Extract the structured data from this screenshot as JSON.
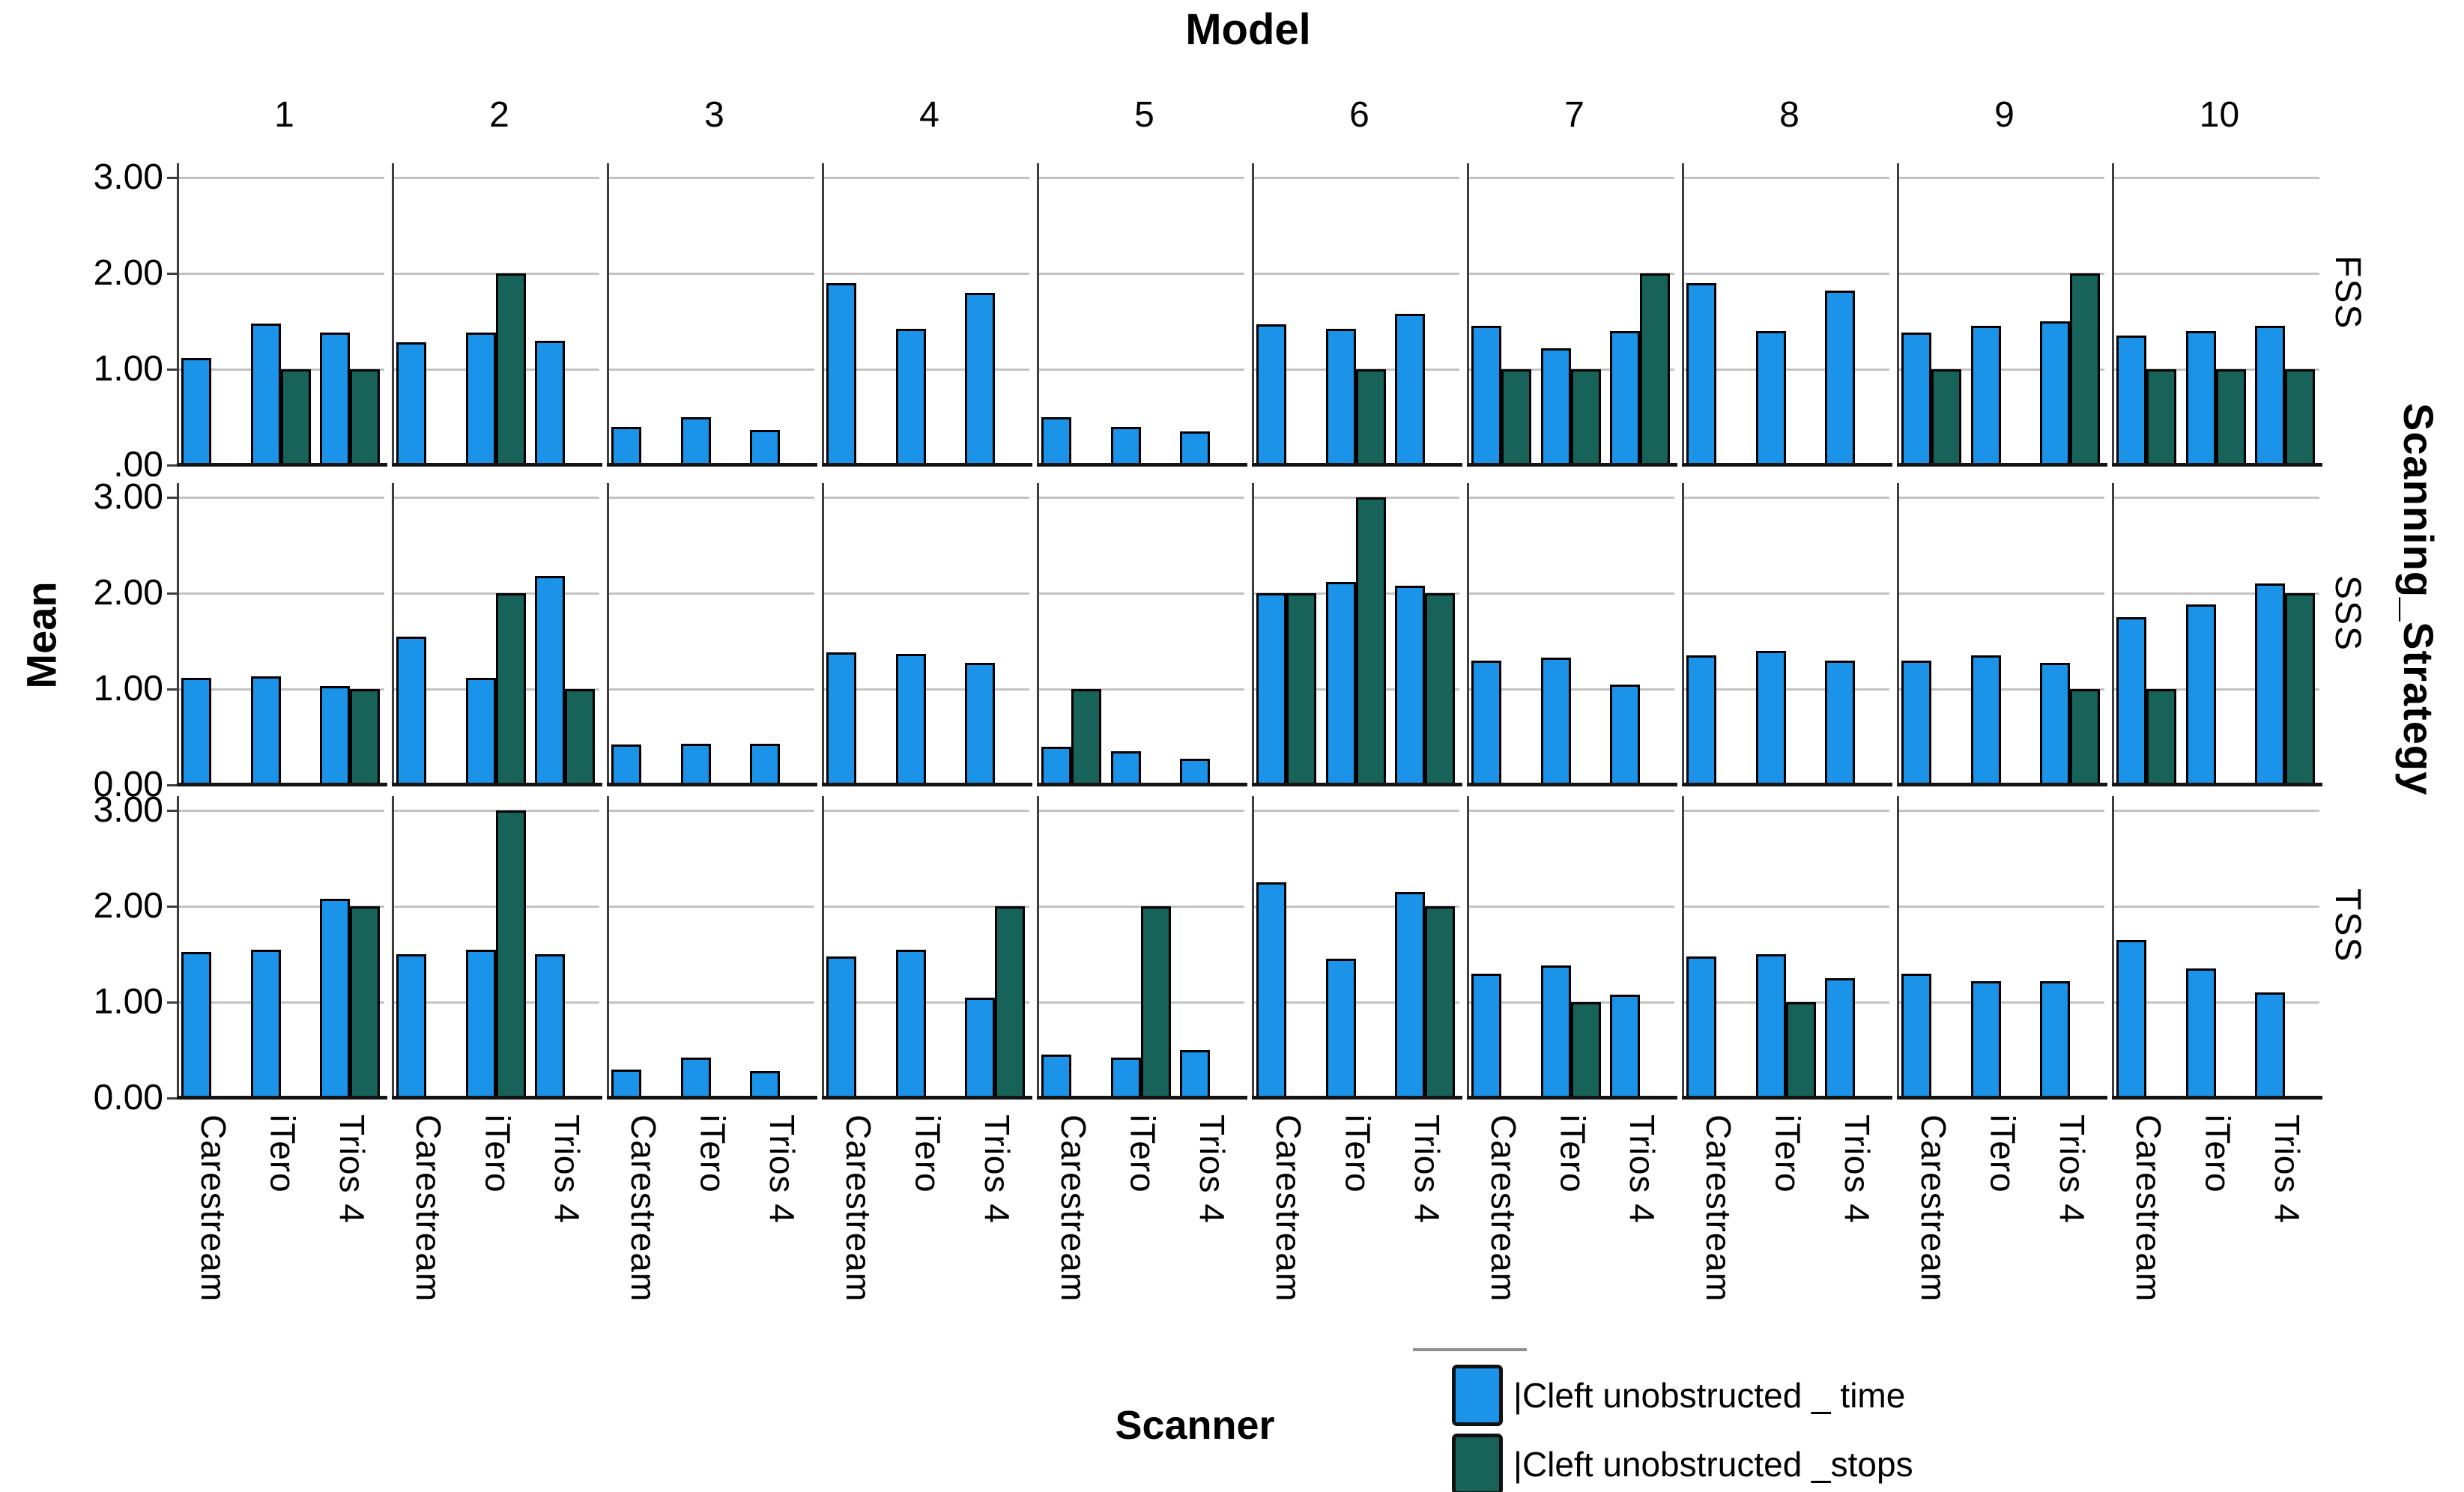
{
  "title": "Model",
  "left_axis_title": "Mean",
  "bottom_axis_title": "Scanner",
  "right_axis_title": "Scanning_Strategy",
  "legend": [
    {
      "label": "|Cleft unobstructed _ time",
      "color": "#1b93e8"
    },
    {
      "label": "|Cleft unobstructed _stops",
      "color": "#17635a"
    }
  ],
  "colors": {
    "time_bar": "#1b93e8",
    "stops_bar": "#17635a",
    "bar_outline": "#000000",
    "gridline": "#c3c3c3",
    "axis_line": "#3d3d3d",
    "baseline": "#141414"
  },
  "y_axis": {
    "ticks": {
      "FSS": [
        "3.00",
        "2.00",
        "1.00",
        ".00"
      ],
      "SSS": [
        "3.00",
        "2.00",
        "1.00",
        "0.00"
      ],
      "TSS": [
        "3.00",
        "2.00",
        "1.00",
        "0.00"
      ]
    }
  },
  "chart_data": {
    "type": "bar",
    "title": "Model",
    "ylabel": "Mean",
    "xlabel": "Scanner",
    "facet_row_label": "Scanning_Strategy",
    "facet_rows": [
      "FSS",
      "SSS",
      "TSS"
    ],
    "facet_cols": [
      "1",
      "2",
      "3",
      "4",
      "5",
      "6",
      "7",
      "8",
      "9",
      "10"
    ],
    "categories": [
      "Carestream",
      "iTero",
      "Trios 4"
    ],
    "series_names": [
      "Cleft unobstructed _ time",
      "Cleft unobstructed _stops"
    ],
    "ylim": [
      0,
      3.2
    ],
    "gridlines": [
      1,
      2,
      3
    ],
    "legend_position": "bottom-right",
    "cells": {
      "FSS": [
        {
          "time": [
            1.12,
            1.48,
            1.38
          ],
          "stops": [
            0,
            1.0,
            1.0
          ]
        },
        {
          "time": [
            1.28,
            1.38,
            1.3
          ],
          "stops": [
            0,
            2.0,
            0
          ]
        },
        {
          "time": [
            0.4,
            0.5,
            0.37
          ],
          "stops": [
            0,
            0,
            0
          ]
        },
        {
          "time": [
            1.9,
            1.42,
            1.8
          ],
          "stops": [
            0,
            0,
            0
          ]
        },
        {
          "time": [
            0.5,
            0.4,
            0.35
          ],
          "stops": [
            0,
            0,
            0
          ]
        },
        {
          "time": [
            1.47,
            1.42,
            1.58
          ],
          "stops": [
            0,
            1.0,
            0
          ]
        },
        {
          "time": [
            1.45,
            1.22,
            1.4
          ],
          "stops": [
            1.0,
            1.0,
            2.0
          ]
        },
        {
          "time": [
            1.9,
            1.4,
            1.82
          ],
          "stops": [
            0,
            0,
            0
          ]
        },
        {
          "time": [
            1.38,
            1.45,
            1.5
          ],
          "stops": [
            1.0,
            0,
            2.0
          ]
        },
        {
          "time": [
            1.35,
            1.4,
            1.45
          ],
          "stops": [
            1.0,
            1.0,
            1.0
          ]
        }
      ],
      "SSS": [
        {
          "time": [
            1.12,
            1.13,
            1.03
          ],
          "stops": [
            0,
            0,
            1.0
          ]
        },
        {
          "time": [
            1.55,
            1.12,
            2.18
          ],
          "stops": [
            0,
            2.0,
            1.0
          ]
        },
        {
          "time": [
            0.42,
            0.43,
            0.43
          ],
          "stops": [
            0,
            0,
            0
          ]
        },
        {
          "time": [
            1.38,
            1.37,
            1.27
          ],
          "stops": [
            0,
            0,
            0
          ]
        },
        {
          "time": [
            0.4,
            0.35,
            0.27
          ],
          "stops": [
            1.0,
            0,
            0
          ]
        },
        {
          "time": [
            2.0,
            2.12,
            2.08
          ],
          "stops": [
            2.0,
            3.0,
            2.0
          ]
        },
        {
          "time": [
            1.3,
            1.33,
            1.05
          ],
          "stops": [
            0,
            0,
            0
          ]
        },
        {
          "time": [
            1.35,
            1.4,
            1.3
          ],
          "stops": [
            0,
            0,
            0
          ]
        },
        {
          "time": [
            1.3,
            1.35,
            1.27
          ],
          "stops": [
            0,
            0,
            1.0
          ]
        },
        {
          "time": [
            1.75,
            1.88,
            2.1
          ],
          "stops": [
            1.0,
            0,
            2.0
          ]
        }
      ],
      "TSS": [
        {
          "time": [
            1.52,
            1.55,
            2.08
          ],
          "stops": [
            0,
            0,
            2.0
          ]
        },
        {
          "time": [
            1.5,
            1.55,
            1.5
          ],
          "stops": [
            0,
            3.0,
            0
          ]
        },
        {
          "time": [
            0.3,
            0.42,
            0.28
          ],
          "stops": [
            0,
            0,
            0
          ]
        },
        {
          "time": [
            1.48,
            1.55,
            1.05
          ],
          "stops": [
            0,
            0,
            2.0
          ]
        },
        {
          "time": [
            0.45,
            0.42,
            0.5
          ],
          "stops": [
            0,
            2.0,
            0
          ]
        },
        {
          "time": [
            2.25,
            1.45,
            2.15
          ],
          "stops": [
            0,
            0,
            2.0
          ]
        },
        {
          "time": [
            1.3,
            1.38,
            1.08
          ],
          "stops": [
            0,
            1.0,
            0
          ]
        },
        {
          "time": [
            1.48,
            1.5,
            1.25
          ],
          "stops": [
            0,
            1.0,
            0
          ]
        },
        {
          "time": [
            1.3,
            1.22,
            1.22
          ],
          "stops": [
            0,
            0,
            0
          ]
        },
        {
          "time": [
            1.65,
            1.35,
            1.1
          ],
          "stops": [
            0,
            0,
            0
          ]
        }
      ]
    }
  }
}
